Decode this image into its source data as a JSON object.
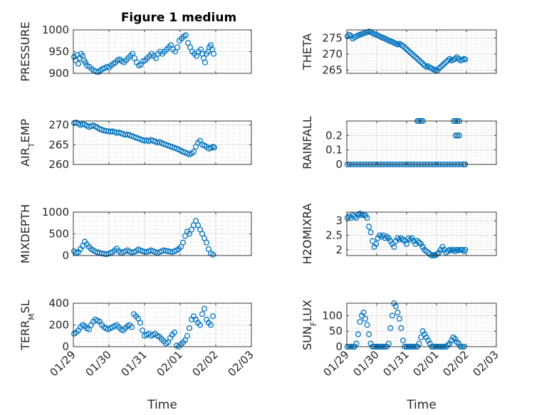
{
  "figure": {
    "title": "Figure 1 medium",
    "marker_color": "#0072BD",
    "x_ticks": [
      "01/29",
      "01/30",
      "01/31",
      "02/01",
      "02/02",
      "02/03"
    ],
    "x_label": "Time"
  },
  "chart_data": [
    {
      "type": "scatter",
      "ylabel": "PRESSURE",
      "xlim": [
        0,
        5
      ],
      "ylim": [
        900,
        1000
      ],
      "yticks": [
        "900",
        "950",
        "1000"
      ],
      "ytick_values": [
        900,
        950,
        1000
      ],
      "x": [
        0.02,
        0.06,
        0.1,
        0.14,
        0.18,
        0.22,
        0.26,
        0.3,
        0.34,
        0.38,
        0.45,
        0.52,
        0.58,
        0.64,
        0.7,
        0.76,
        0.82,
        0.88,
        0.94,
        1.0,
        1.06,
        1.12,
        1.18,
        1.24,
        1.3,
        1.36,
        1.42,
        1.48,
        1.54,
        1.6,
        1.66,
        1.72,
        1.78,
        1.84,
        1.9,
        1.96,
        2.02,
        2.08,
        2.14,
        2.2,
        2.26,
        2.32,
        2.38,
        2.44,
        2.5,
        2.56,
        2.62,
        2.68,
        2.74,
        2.8,
        2.86,
        2.92,
        2.98,
        3.04,
        3.1,
        3.16,
        3.22,
        3.28,
        3.34,
        3.4,
        3.46,
        3.52,
        3.58,
        3.62,
        3.66,
        3.7,
        3.74,
        3.78,
        3.82,
        3.86,
        3.9,
        3.94
      ],
      "y": [
        938,
        930,
        942,
        922,
        935,
        945,
        940,
        930,
        925,
        918,
        915,
        910,
        906,
        904,
        903,
        907,
        910,
        912,
        915,
        913,
        918,
        922,
        925,
        930,
        932,
        928,
        925,
        930,
        935,
        940,
        945,
        935,
        925,
        918,
        920,
        928,
        930,
        935,
        940,
        945,
        940,
        935,
        945,
        950,
        945,
        950,
        955,
        960,
        965,
        955,
        950,
        960,
        975,
        980,
        985,
        988,
        970,
        960,
        950,
        945,
        940,
        950,
        955,
        945,
        935,
        925,
        945,
        950,
        960,
        965,
        955,
        945
      ]
    },
    {
      "type": "scatter",
      "ylabel": "THETA",
      "xlim": [
        0,
        5
      ],
      "ylim": [
        264,
        277.5
      ],
      "yticks": [
        "265",
        "270",
        "275"
      ],
      "ytick_values": [
        265,
        270,
        275
      ],
      "x": [
        0.02,
        0.08,
        0.14,
        0.2,
        0.26,
        0.32,
        0.38,
        0.44,
        0.5,
        0.56,
        0.62,
        0.68,
        0.74,
        0.8,
        0.86,
        0.92,
        0.98,
        1.04,
        1.1,
        1.16,
        1.22,
        1.28,
        1.34,
        1.4,
        1.46,
        1.52,
        1.58,
        1.64,
        1.7,
        1.76,
        1.82,
        1.88,
        1.94,
        2.0,
        2.06,
        2.12,
        2.18,
        2.24,
        2.3,
        2.36,
        2.42,
        2.48,
        2.54,
        2.6,
        2.66,
        2.72,
        2.78,
        2.84,
        2.9,
        2.96,
        3.02,
        3.08,
        3.14,
        3.2,
        3.26,
        3.32,
        3.38,
        3.44,
        3.5,
        3.56,
        3.62,
        3.68,
        3.74,
        3.8,
        3.86,
        3.92,
        3.96
      ],
      "y": [
        275.5,
        276,
        275.6,
        274.8,
        275.2,
        275.5,
        275.8,
        276,
        276.2,
        276.4,
        276.6,
        276.8,
        277,
        276.8,
        276.5,
        276.2,
        276,
        275.8,
        275.5,
        275.2,
        275,
        274.8,
        274.5,
        274.2,
        274,
        273.8,
        273.5,
        273.2,
        273,
        273.2,
        272.8,
        272.5,
        272,
        271.5,
        271,
        270.5,
        270,
        269.5,
        269,
        268.5,
        268,
        267.5,
        267,
        266.5,
        266,
        266.2,
        265.8,
        265.5,
        265.2,
        265,
        264.8,
        265.5,
        266,
        266.5,
        267,
        267.5,
        268,
        268.5,
        268,
        268.2,
        268.5,
        269,
        268.5,
        268,
        268.2,
        268.5,
        268.3
      ]
    },
    {
      "type": "scatter",
      "ylabel": "AIR_TEMP",
      "ylabel_parts": [
        "AIR",
        "T",
        "EMP"
      ],
      "xlim": [
        0,
        5
      ],
      "ylim": [
        260,
        271
      ],
      "yticks": [
        "260",
        "265",
        "270"
      ],
      "ytick_values": [
        260,
        265,
        270
      ],
      "x": [
        0.02,
        0.08,
        0.14,
        0.2,
        0.26,
        0.32,
        0.38,
        0.44,
        0.5,
        0.56,
        0.62,
        0.68,
        0.74,
        0.8,
        0.86,
        0.92,
        0.98,
        1.04,
        1.1,
        1.16,
        1.22,
        1.28,
        1.34,
        1.4,
        1.46,
        1.52,
        1.58,
        1.64,
        1.7,
        1.76,
        1.82,
        1.88,
        1.94,
        2.0,
        2.06,
        2.12,
        2.18,
        2.24,
        2.3,
        2.36,
        2.42,
        2.48,
        2.54,
        2.6,
        2.66,
        2.72,
        2.78,
        2.84,
        2.9,
        2.96,
        3.02,
        3.08,
        3.14,
        3.2,
        3.26,
        3.32,
        3.38,
        3.44,
        3.5,
        3.56,
        3.62,
        3.68,
        3.74,
        3.8,
        3.86,
        3.92,
        3.96
      ],
      "y": [
        270.5,
        270.6,
        270.3,
        270,
        270.2,
        270.1,
        269.8,
        269.5,
        269.7,
        269.9,
        269.6,
        269.3,
        269,
        268.8,
        268.6,
        268.5,
        268.4,
        268.3,
        268.4,
        268.2,
        268,
        268.1,
        267.9,
        267.7,
        267.5,
        267.6,
        267.4,
        267.2,
        267,
        266.8,
        266.6,
        266.4,
        266.2,
        266,
        266.1,
        265.9,
        266.2,
        266,
        265.8,
        265.5,
        265.7,
        265.4,
        265.2,
        265,
        264.8,
        264.6,
        264.4,
        264.2,
        264,
        263.8,
        263.5,
        263.2,
        263,
        262.8,
        262.5,
        262.8,
        263.2,
        264.5,
        265.5,
        266,
        265,
        264.8,
        264.5,
        264,
        264.2,
        264.5,
        264.3
      ]
    },
    {
      "type": "scatter",
      "ylabel": "RAINFALL",
      "xlim": [
        0,
        5
      ],
      "ylim": [
        0,
        0.3
      ],
      "yticks": [
        "0",
        "0.1",
        "0.2"
      ],
      "ytick_values": [
        0,
        0.1,
        0.2
      ],
      "x": [
        0.02,
        0.1,
        0.2,
        0.3,
        0.4,
        0.5,
        0.6,
        0.7,
        0.8,
        0.9,
        1.0,
        1.1,
        1.2,
        1.3,
        1.4,
        1.5,
        1.6,
        1.7,
        1.8,
        1.9,
        2.0,
        2.1,
        2.2,
        2.3,
        2.4,
        2.5,
        2.6,
        2.7,
        2.8,
        2.9,
        3.0,
        3.1,
        3.2,
        3.3,
        3.4,
        3.5,
        3.6,
        3.7,
        3.8,
        3.9,
        3.96,
        2.36,
        2.42,
        2.48,
        2.54,
        3.58,
        3.64,
        3.7,
        3.76,
        3.64,
        3.7,
        3.76
      ],
      "y": [
        0,
        0,
        0,
        0,
        0,
        0,
        0,
        0,
        0,
        0,
        0,
        0,
        0,
        0,
        0,
        0,
        0,
        0,
        0,
        0,
        0,
        0,
        0,
        0,
        0,
        0,
        0,
        0,
        0,
        0,
        0,
        0,
        0,
        0,
        0,
        0,
        0,
        0,
        0,
        0,
        0,
        0.3,
        0.3,
        0.3,
        0.3,
        0.3,
        0.3,
        0.3,
        0.3,
        0.2,
        0.2,
        0.2
      ]
    },
    {
      "type": "scatter",
      "ylabel": "MIXDEPTH",
      "xlim": [
        0,
        5
      ],
      "ylim": [
        0,
        1000
      ],
      "yticks": [
        "0",
        "500",
        "1000"
      ],
      "ytick_values": [
        0,
        500,
        1000
      ],
      "x": [
        0.02,
        0.08,
        0.14,
        0.2,
        0.26,
        0.32,
        0.38,
        0.44,
        0.5,
        0.56,
        0.62,
        0.68,
        0.74,
        0.8,
        0.86,
        0.92,
        0.98,
        1.04,
        1.1,
        1.16,
        1.22,
        1.28,
        1.34,
        1.4,
        1.46,
        1.52,
        1.58,
        1.64,
        1.7,
        1.76,
        1.82,
        1.88,
        1.94,
        2.0,
        2.06,
        2.12,
        2.18,
        2.24,
        2.3,
        2.36,
        2.42,
        2.48,
        2.54,
        2.6,
        2.66,
        2.72,
        2.78,
        2.84,
        2.9,
        2.96,
        3.02,
        3.08,
        3.14,
        3.2,
        3.26,
        3.32,
        3.38,
        3.44,
        3.5,
        3.56,
        3.62,
        3.68,
        3.74,
        3.8,
        3.86,
        3.92
      ],
      "y": [
        100,
        60,
        80,
        150,
        220,
        320,
        260,
        200,
        150,
        120,
        90,
        70,
        60,
        50,
        40,
        30,
        40,
        60,
        80,
        120,
        160,
        100,
        60,
        80,
        100,
        120,
        90,
        70,
        80,
        100,
        140,
        120,
        100,
        90,
        80,
        100,
        120,
        100,
        80,
        60,
        80,
        100,
        120,
        110,
        100,
        90,
        80,
        100,
        120,
        150,
        200,
        300,
        450,
        550,
        500,
        600,
        700,
        800,
        700,
        600,
        500,
        400,
        300,
        150,
        50,
        20
      ]
    },
    {
      "type": "scatter",
      "ylabel": "H2OMIXRA",
      "xlim": [
        0,
        5
      ],
      "ylim": [
        1.8,
        3.3
      ],
      "yticks": [
        "2",
        "2.5",
        "3"
      ],
      "ytick_values": [
        2,
        2.5,
        3
      ],
      "x": [
        0.02,
        0.08,
        0.14,
        0.2,
        0.26,
        0.32,
        0.38,
        0.44,
        0.5,
        0.56,
        0.62,
        0.68,
        0.74,
        0.8,
        0.86,
        0.92,
        0.98,
        1.04,
        1.1,
        1.16,
        1.22,
        1.28,
        1.34,
        1.4,
        1.46,
        1.52,
        1.58,
        1.64,
        1.7,
        1.76,
        1.82,
        1.88,
        1.94,
        2.0,
        2.06,
        2.12,
        2.18,
        2.24,
        2.3,
        2.36,
        2.42,
        2.48,
        2.54,
        2.6,
        2.66,
        2.72,
        2.78,
        2.84,
        2.9,
        2.96,
        3.02,
        3.08,
        3.14,
        3.2,
        3.26,
        3.32,
        3.38,
        3.44,
        3.5,
        3.56,
        3.62,
        3.68,
        3.74,
        3.8,
        3.86,
        3.92,
        3.96
      ],
      "y": [
        3.1,
        3.15,
        3.1,
        3.2,
        3.15,
        3.1,
        3.2,
        3.25,
        3.2,
        3.22,
        3.18,
        3.1,
        2.8,
        2.6,
        2.3,
        2.1,
        2.2,
        2.4,
        2.5,
        2.45,
        2.5,
        2.4,
        2.45,
        2.4,
        2.3,
        2.2,
        2.1,
        2.3,
        2.4,
        2.35,
        2.4,
        2.35,
        2.3,
        2.2,
        2.4,
        2.35,
        2.4,
        2.3,
        2.2,
        2.3,
        2.25,
        2.2,
        2.1,
        2.0,
        1.95,
        1.9,
        1.85,
        1.8,
        1.82,
        1.8,
        1.85,
        1.9,
        2.0,
        2.1,
        2.0,
        1.9,
        1.95,
        2.0,
        1.98,
        2.0,
        1.95,
        2.0,
        1.98,
        2.0,
        2.0,
        1.95,
        2.0
      ]
    },
    {
      "type": "scatter",
      "ylabel": "TERR_MSL",
      "ylabel_parts": [
        "TERR",
        "M",
        "SL"
      ],
      "xlim": [
        0,
        5
      ],
      "ylim": [
        0,
        400
      ],
      "yticks": [
        "0",
        "200",
        "400"
      ],
      "ytick_values": [
        0,
        200,
        400
      ],
      "x": [
        0.02,
        0.08,
        0.14,
        0.2,
        0.26,
        0.32,
        0.38,
        0.44,
        0.5,
        0.56,
        0.62,
        0.68,
        0.74,
        0.8,
        0.86,
        0.92,
        0.98,
        1.04,
        1.1,
        1.16,
        1.22,
        1.28,
        1.34,
        1.4,
        1.46,
        1.52,
        1.58,
        1.64,
        1.7,
        1.76,
        1.82,
        1.88,
        1.94,
        2.0,
        2.06,
        2.12,
        2.18,
        2.24,
        2.3,
        2.36,
        2.42,
        2.48,
        2.54,
        2.6,
        2.66,
        2.72,
        2.78,
        2.84,
        2.9,
        2.96,
        3.02,
        3.08,
        3.14,
        3.2,
        3.26,
        3.32,
        3.38,
        3.44,
        3.5,
        3.56,
        3.62,
        3.68,
        3.74,
        3.8,
        3.86,
        3.92
      ],
      "y": [
        120,
        130,
        150,
        180,
        200,
        190,
        170,
        160,
        200,
        230,
        250,
        240,
        230,
        200,
        180,
        170,
        160,
        170,
        180,
        190,
        200,
        180,
        160,
        150,
        170,
        190,
        200,
        180,
        300,
        280,
        260,
        220,
        150,
        100,
        110,
        120,
        100,
        110,
        120,
        100,
        90,
        70,
        50,
        30,
        40,
        80,
        110,
        130,
        10,
        0,
        20,
        40,
        60,
        100,
        170,
        250,
        280,
        250,
        220,
        200,
        300,
        350,
        250,
        220,
        200,
        280
      ]
    },
    {
      "type": "scatter",
      "ylabel": "SUN_FLUX",
      "ylabel_parts": [
        "SUN",
        "F",
        "LUX"
      ],
      "xlim": [
        0,
        5
      ],
      "ylim": [
        0,
        140
      ],
      "yticks": [
        "0",
        "50",
        "100"
      ],
      "ytick_values": [
        0,
        50,
        100
      ],
      "x": [
        0.02,
        0.08,
        0.14,
        0.2,
        0.26,
        0.32,
        0.38,
        0.44,
        0.5,
        0.56,
        0.62,
        0.68,
        0.74,
        0.8,
        0.86,
        0.92,
        0.98,
        1.04,
        1.1,
        1.16,
        1.22,
        1.28,
        1.34,
        1.4,
        1.46,
        1.52,
        1.58,
        1.64,
        1.7,
        1.76,
        1.82,
        1.88,
        1.94,
        2.0,
        2.06,
        2.12,
        2.18,
        2.24,
        2.3,
        2.36,
        2.42,
        2.48,
        2.54,
        2.6,
        2.66,
        2.72,
        2.78,
        2.84,
        2.9,
        2.96,
        3.02,
        3.08,
        3.14,
        3.2,
        3.26,
        3.32,
        3.38,
        3.44,
        3.5,
        3.56,
        3.62,
        3.68,
        3.74,
        3.8,
        3.86,
        3.92
      ],
      "y": [
        0,
        0,
        0,
        0,
        0,
        10,
        40,
        80,
        100,
        110,
        90,
        70,
        40,
        10,
        0,
        0,
        0,
        0,
        0,
        0,
        0,
        0,
        0,
        10,
        60,
        100,
        140,
        130,
        110,
        90,
        60,
        20,
        0,
        0,
        0,
        0,
        0,
        0,
        0,
        0,
        10,
        30,
        50,
        40,
        30,
        20,
        10,
        0,
        0,
        0,
        0,
        0,
        0,
        0,
        0,
        0,
        5,
        10,
        20,
        30,
        25,
        15,
        10,
        0,
        0,
        0
      ]
    }
  ]
}
